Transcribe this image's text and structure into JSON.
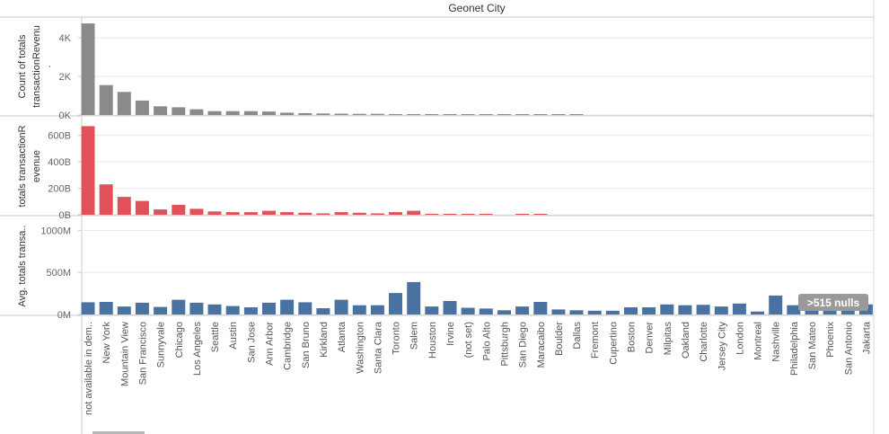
{
  "colors": {
    "panel1": "#8a8a8a",
    "panel2": "#e0515a",
    "panel3": "#4a72a0",
    "grid": "#e8e8e8",
    "border": "#c8c8c8",
    "badge": "#9a9a9a"
  },
  "chart_data": {
    "type": "bar",
    "title": "Geonet City",
    "categories": [
      "not available in dem..",
      "New York",
      "Mountain View",
      "San Francisco",
      "Sunnyvale",
      "Chicago",
      "Los Angeles",
      "Seattle",
      "Austin",
      "San Jose",
      "Ann Arbor",
      "Cambridge",
      "San Bruno",
      "Kirkland",
      "Atlanta",
      "Washington",
      "Santa Clara",
      "Toronto",
      "Salem",
      "Houston",
      "Irvine",
      "(not set)",
      "Palo Alto",
      "Pittsburgh",
      "San Diego",
      "Maracaibo",
      "Boulder",
      "Dallas",
      "Fremont",
      "Cupertino",
      "Boston",
      "Denver",
      "Milpitas",
      "Oakland",
      "Charlotte",
      "Jersey City",
      "London",
      "Montreal",
      "Nashville",
      "Philadelphia",
      "San Mateo",
      "Phoenix",
      "San Antonio",
      "Jakarta"
    ],
    "panels": [
      {
        "ylabel_lines": [
          "Count of totals",
          "transactionRevenu",
          "."
        ],
        "ylim": [
          0,
          4800
        ],
        "ticks": [
          {
            "v": 0,
            "label": "0K"
          },
          {
            "v": 2000,
            "label": "2K"
          },
          {
            "v": 4000,
            "label": "4K"
          }
        ],
        "values": [
          4750,
          1550,
          1200,
          750,
          450,
          400,
          300,
          200,
          200,
          200,
          180,
          120,
          100,
          80,
          70,
          60,
          60,
          40,
          30,
          30,
          20,
          20,
          20,
          20,
          20,
          20,
          20,
          15,
          null,
          null,
          null,
          null,
          null,
          null,
          null,
          null,
          null,
          null,
          null,
          null,
          null,
          null,
          null,
          null
        ]
      },
      {
        "ylabel_lines": [
          "totals transactionR",
          "evenue"
        ],
        "ylim": [
          0,
          700
        ],
        "ticks": [
          {
            "v": 0,
            "label": "0B"
          },
          {
            "v": 200,
            "label": "200B"
          },
          {
            "v": 400,
            "label": "400B"
          },
          {
            "v": 600,
            "label": "600B"
          }
        ],
        "values": [
          670,
          230,
          135,
          105,
          40,
          75,
          45,
          25,
          20,
          20,
          30,
          20,
          15,
          10,
          20,
          15,
          10,
          20,
          30,
          6,
          6,
          6,
          6,
          null,
          6,
          6,
          null,
          null,
          null,
          null,
          null,
          null,
          null,
          null,
          null,
          null,
          null,
          null,
          null,
          null,
          null,
          null,
          null,
          null
        ]
      },
      {
        "ylabel_lines": [
          "Avg. totals transa.."
        ],
        "ylim": [
          0,
          1100
        ],
        "ticks": [
          {
            "v": 0,
            "label": "0M"
          },
          {
            "v": 500,
            "label": "500M"
          },
          {
            "v": 1000,
            "label": "1000M"
          }
        ],
        "values": [
          145,
          150,
          95,
          140,
          90,
          175,
          140,
          120,
          100,
          85,
          140,
          175,
          145,
          75,
          175,
          110,
          110,
          255,
          385,
          95,
          160,
          80,
          70,
          50,
          95,
          150,
          60,
          50,
          45,
          45,
          85,
          85,
          120,
          110,
          115,
          95,
          130,
          35,
          225,
          110,
          105,
          105,
          105,
          120
        ]
      }
    ],
    "nulls_badge": ">515 nulls",
    "grid": true
  }
}
